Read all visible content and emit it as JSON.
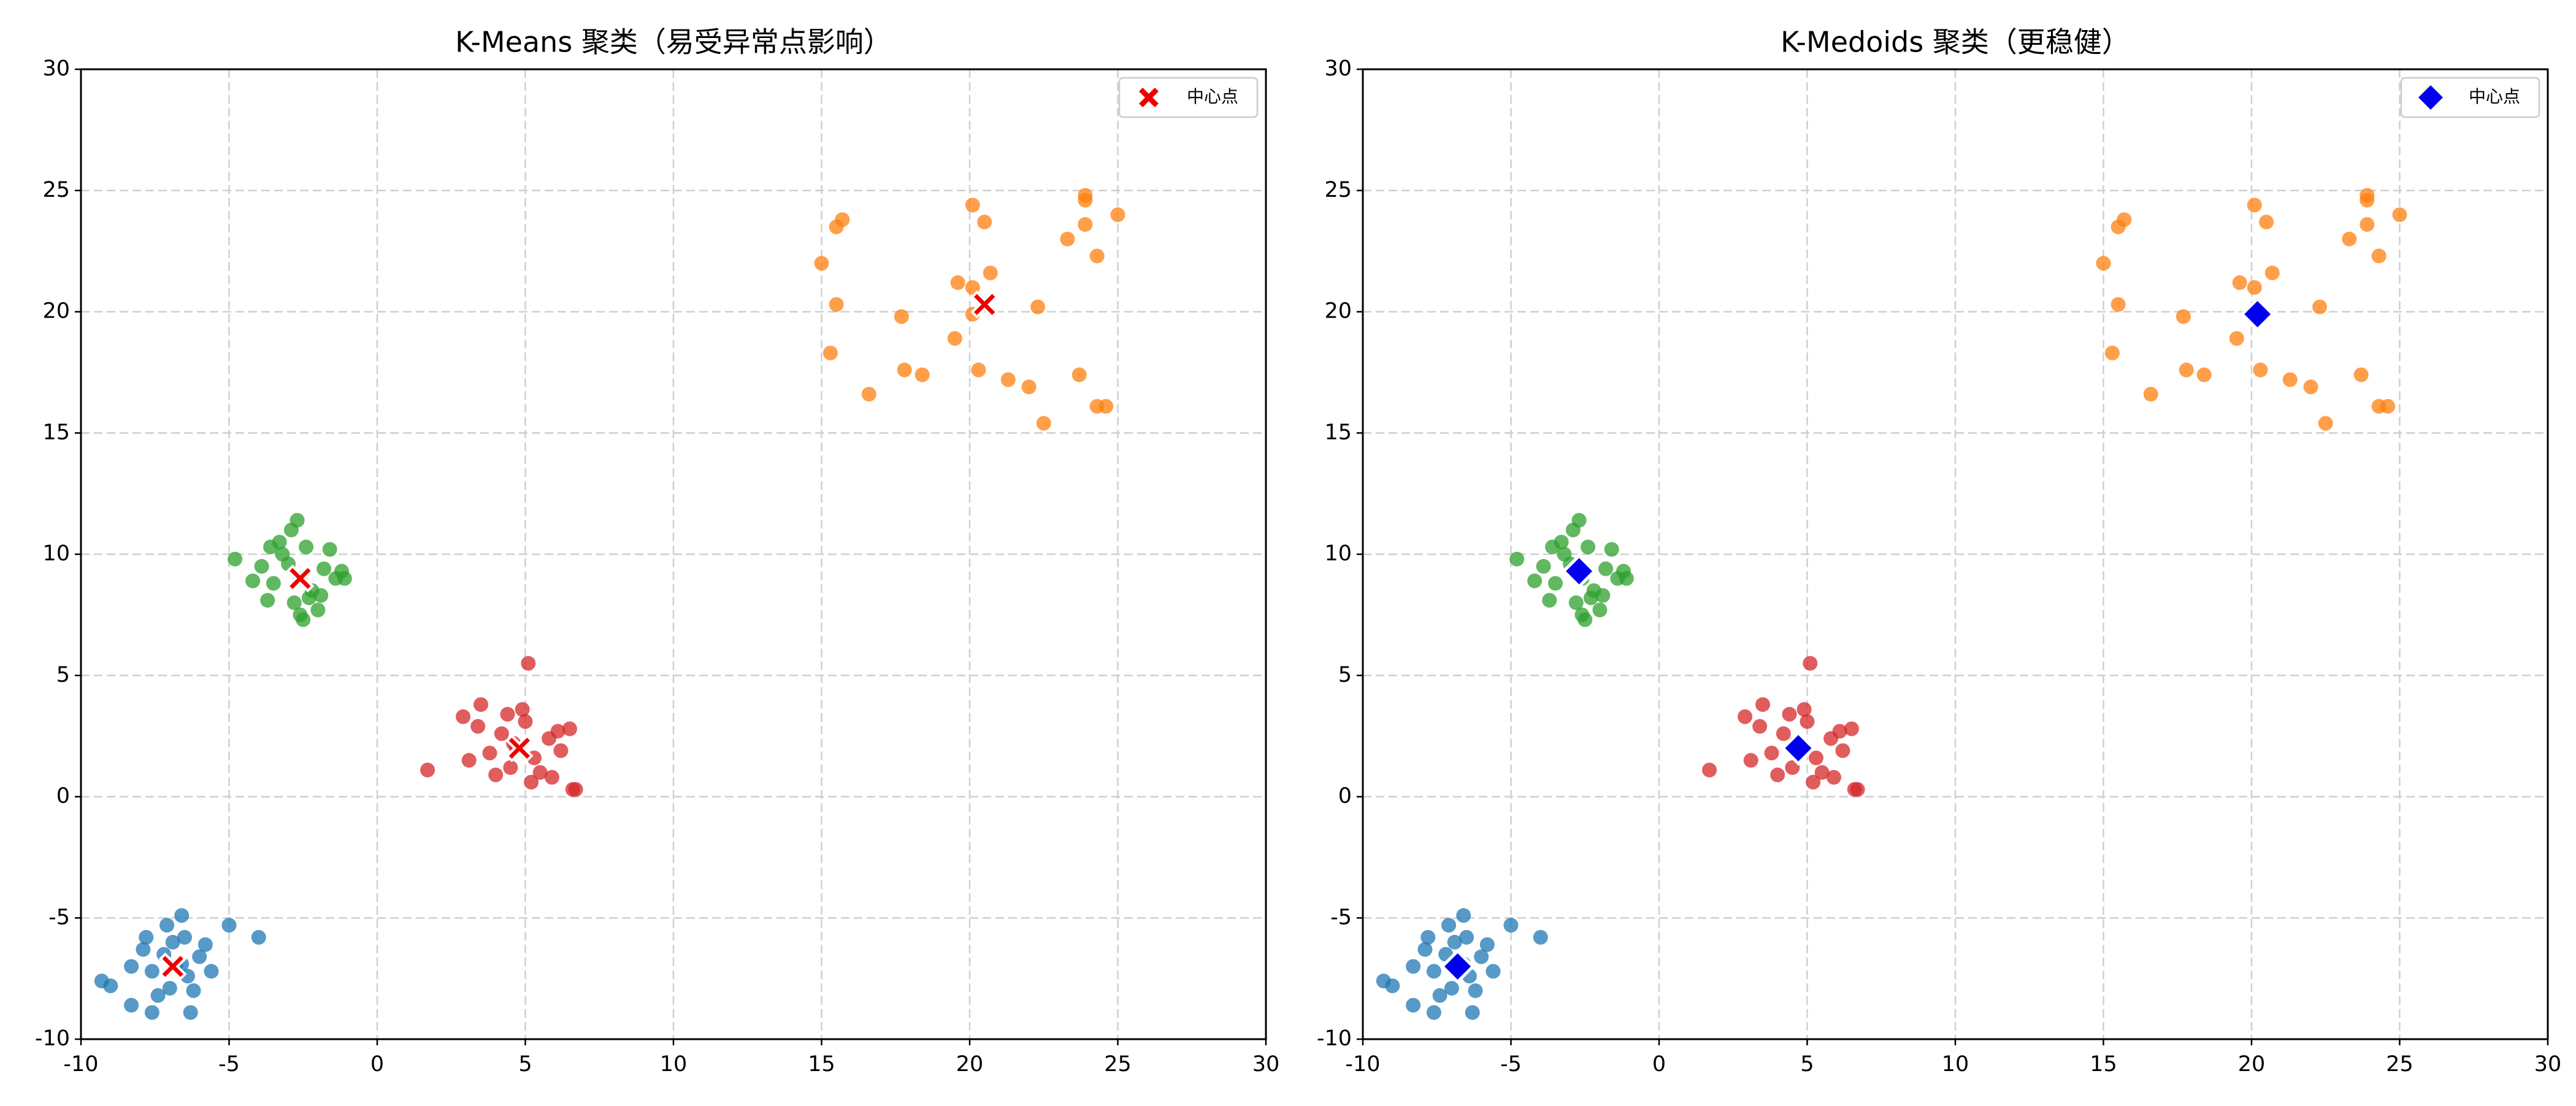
{
  "chart_data": [
    {
      "type": "scatter",
      "title": "K-Means 聚类（易受异常点影响）",
      "xlim": [
        -10,
        30
      ],
      "ylim": [
        -10,
        30
      ],
      "xticks": [
        -10,
        -5,
        0,
        5,
        10,
        15,
        20,
        25,
        30
      ],
      "yticks": [
        -10,
        -5,
        0,
        5,
        10,
        15,
        20,
        25,
        30
      ],
      "grid": true,
      "legend": "upper right",
      "series": [
        {
          "color": "#1f77b4",
          "x": [
            -6.8,
            -7.2,
            -6.4,
            -7.6,
            -6.0,
            -7.0,
            -6.5,
            -7.9,
            -5.6,
            -6.9,
            -7.4,
            -6.2,
            -8.3,
            -5.8,
            -7.1,
            -6.6,
            -4.0,
            -5.0,
            -9.3,
            -9.0,
            -8.3,
            -7.6,
            -6.3,
            -6.6,
            -7.8
          ],
          "values": [
            -7.0,
            -6.5,
            -7.4,
            -7.2,
            -6.6,
            -7.9,
            -5.8,
            -6.3,
            -7.2,
            -6.0,
            -8.2,
            -8.0,
            -7.0,
            -6.1,
            -5.3,
            -4.9,
            -5.8,
            -5.3,
            -7.6,
            -7.8,
            -8.6,
            -8.9,
            -8.9,
            -6.9,
            -5.8
          ]
        },
        {
          "color": "#2ca02c",
          "x": [
            -2.6,
            -3.0,
            -2.2,
            -3.5,
            -1.8,
            -2.8,
            -2.4,
            -3.9,
            -1.4,
            -2.9,
            -3.3,
            -2.0,
            -1.2,
            -3.7,
            -2.5,
            -2.7,
            -4.8,
            -3.2,
            -1.6,
            -2.3,
            -4.2,
            -1.1,
            -2.6,
            -3.6,
            -1.9
          ],
          "values": [
            9.0,
            9.6,
            8.5,
            8.8,
            9.4,
            8.0,
            10.3,
            9.5,
            9.0,
            11.0,
            10.5,
            7.7,
            9.3,
            8.1,
            7.3,
            11.4,
            9.8,
            10.0,
            10.2,
            8.2,
            8.9,
            9.0,
            7.5,
            10.3,
            8.3
          ]
        },
        {
          "color": "#d62728",
          "x": [
            4.7,
            4.2,
            5.3,
            3.8,
            5.8,
            4.5,
            5.0,
            3.4,
            6.2,
            4.9,
            4.0,
            5.5,
            6.5,
            3.1,
            4.6,
            5.2,
            1.7,
            5.1,
            6.6,
            6.7,
            2.9,
            3.5,
            4.4,
            5.9,
            6.1
          ],
          "values": [
            2.0,
            2.6,
            1.6,
            1.8,
            2.4,
            1.2,
            3.1,
            2.9,
            1.9,
            3.6,
            0.9,
            1.0,
            2.8,
            1.5,
            2.2,
            0.6,
            1.1,
            5.5,
            0.3,
            0.3,
            3.3,
            3.8,
            3.4,
            0.8,
            2.7
          ]
        },
        {
          "color": "#ff7f0e",
          "x": [
            15.0,
            15.5,
            15.7,
            15.5,
            15.3,
            16.6,
            17.7,
            17.8,
            18.4,
            19.5,
            19.6,
            20.1,
            20.5,
            20.3,
            20.7,
            21.3,
            22.0,
            22.3,
            22.5,
            23.3,
            23.7,
            23.9,
            23.9,
            23.9,
            24.3,
            24.3,
            24.6,
            25.0,
            20.1,
            20.1
          ],
          "values": [
            22.0,
            23.5,
            23.8,
            20.3,
            18.3,
            16.6,
            19.8,
            17.6,
            17.4,
            18.9,
            21.2,
            24.4,
            23.7,
            17.6,
            21.6,
            17.2,
            16.9,
            20.2,
            15.4,
            23.0,
            17.4,
            24.6,
            24.8,
            23.6,
            22.3,
            16.1,
            16.1,
            24.0,
            21.0,
            19.9
          ]
        },
        {
          "name": "中心点",
          "color": "#ee0000",
          "marker": "x",
          "x": [
            -6.9,
            -2.6,
            4.8,
            20.5
          ],
          "values": [
            -7.0,
            9.0,
            2.0,
            20.3
          ]
        }
      ]
    },
    {
      "type": "scatter",
      "title": "K-Medoids 聚类（更稳健）",
      "xlim": [
        -10,
        30
      ],
      "ylim": [
        -10,
        30
      ],
      "xticks": [
        -10,
        -5,
        0,
        5,
        10,
        15,
        20,
        25,
        30
      ],
      "yticks": [
        -10,
        -5,
        0,
        5,
        10,
        15,
        20,
        25,
        30
      ],
      "grid": true,
      "legend": "upper right",
      "series": [
        {
          "color": "#1f77b4",
          "x": [
            -6.8,
            -7.2,
            -6.4,
            -7.6,
            -6.0,
            -7.0,
            -6.5,
            -7.9,
            -5.6,
            -6.9,
            -7.4,
            -6.2,
            -8.3,
            -5.8,
            -7.1,
            -6.6,
            -4.0,
            -5.0,
            -9.3,
            -9.0,
            -8.3,
            -7.6,
            -6.3,
            -6.6,
            -7.8
          ],
          "values": [
            -7.0,
            -6.5,
            -7.4,
            -7.2,
            -6.6,
            -7.9,
            -5.8,
            -6.3,
            -7.2,
            -6.0,
            -8.2,
            -8.0,
            -7.0,
            -6.1,
            -5.3,
            -4.9,
            -5.8,
            -5.3,
            -7.6,
            -7.8,
            -8.6,
            -8.9,
            -8.9,
            -6.9,
            -5.8
          ]
        },
        {
          "color": "#2ca02c",
          "x": [
            -2.6,
            -3.0,
            -2.2,
            -3.5,
            -1.8,
            -2.8,
            -2.4,
            -3.9,
            -1.4,
            -2.9,
            -3.3,
            -2.0,
            -1.2,
            -3.7,
            -2.5,
            -2.7,
            -4.8,
            -3.2,
            -1.6,
            -2.3,
            -4.2,
            -1.1,
            -2.6,
            -3.6,
            -1.9
          ],
          "values": [
            9.0,
            9.6,
            8.5,
            8.8,
            9.4,
            8.0,
            10.3,
            9.5,
            9.0,
            11.0,
            10.5,
            7.7,
            9.3,
            8.1,
            7.3,
            11.4,
            9.8,
            10.0,
            10.2,
            8.2,
            8.9,
            9.0,
            7.5,
            10.3,
            8.3
          ]
        },
        {
          "color": "#d62728",
          "x": [
            4.7,
            4.2,
            5.3,
            3.8,
            5.8,
            4.5,
            5.0,
            3.4,
            6.2,
            4.9,
            4.0,
            5.5,
            6.5,
            3.1,
            4.6,
            5.2,
            1.7,
            5.1,
            6.6,
            6.7,
            2.9,
            3.5,
            4.4,
            5.9,
            6.1
          ],
          "values": [
            2.0,
            2.6,
            1.6,
            1.8,
            2.4,
            1.2,
            3.1,
            2.9,
            1.9,
            3.6,
            0.9,
            1.0,
            2.8,
            1.5,
            2.2,
            0.6,
            1.1,
            5.5,
            0.3,
            0.3,
            3.3,
            3.8,
            3.4,
            0.8,
            2.7
          ]
        },
        {
          "color": "#ff7f0e",
          "x": [
            15.0,
            15.5,
            15.7,
            15.5,
            15.3,
            16.6,
            17.7,
            17.8,
            18.4,
            19.5,
            19.6,
            20.1,
            20.5,
            20.3,
            20.7,
            21.3,
            22.0,
            22.3,
            22.5,
            23.3,
            23.7,
            23.9,
            23.9,
            23.9,
            24.3,
            24.3,
            24.6,
            25.0,
            20.1,
            20.1
          ],
          "values": [
            22.0,
            23.5,
            23.8,
            20.3,
            18.3,
            16.6,
            19.8,
            17.6,
            17.4,
            18.9,
            21.2,
            24.4,
            23.7,
            17.6,
            21.6,
            17.2,
            16.9,
            20.2,
            15.4,
            23.0,
            17.4,
            24.6,
            24.8,
            23.6,
            22.3,
            16.1,
            16.1,
            24.0,
            21.0,
            19.9
          ]
        },
        {
          "name": "中心点",
          "color": "#0000ee",
          "marker": "diamond",
          "x": [
            -6.8,
            -2.7,
            4.7,
            20.2
          ],
          "values": [
            -7.0,
            9.3,
            2.0,
            19.9
          ]
        }
      ]
    }
  ]
}
